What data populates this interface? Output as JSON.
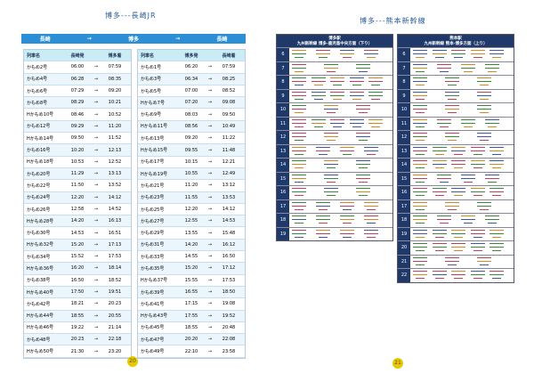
{
  "left_page": {
    "title": "博多---長崎JR",
    "route": [
      "長崎",
      "→",
      "博多",
      "→",
      "長崎"
    ],
    "tables": [
      {
        "header": [
          "列車名",
          "長崎発",
          "博多着"
        ],
        "arrow": "→",
        "rows": [
          [
            "かもめ2号",
            "06:00",
            "07:59"
          ],
          [
            "かもめ4号",
            "06:28",
            "08:35"
          ],
          [
            "かもめ6号",
            "07:29",
            "09:20"
          ],
          [
            "かもめ8号",
            "08:29",
            "10:21"
          ],
          [
            "Hかもめ10号",
            "08:46",
            "10:52"
          ],
          [
            "かもめ12号",
            "09:29",
            "11:20"
          ],
          [
            "Hかもめ14号",
            "09:50",
            "11:52"
          ],
          [
            "かもめ16号",
            "10:20",
            "12:13"
          ],
          [
            "Hかもめ18号",
            "10:53",
            "12:52"
          ],
          [
            "かもめ20号",
            "11:29",
            "13:13"
          ],
          [
            "かもめ22号",
            "11:50",
            "13:52"
          ],
          [
            "かもめ24号",
            "12:20",
            "14:12"
          ],
          [
            "かもめ26号",
            "12:58",
            "14:52"
          ],
          [
            "Hかもめ28号",
            "14:20",
            "16:13"
          ],
          [
            "かもめ30号",
            "14:53",
            "16:51"
          ],
          [
            "Hかもめ32号",
            "15:20",
            "17:13"
          ],
          [
            "かもめ34号",
            "15:52",
            "17:53"
          ],
          [
            "Hかもめ36号",
            "16:20",
            "18:14"
          ],
          [
            "かもめ38号",
            "16:50",
            "18:52"
          ],
          [
            "Hかもめ40号",
            "17:50",
            "19:51"
          ],
          [
            "かもめ42号",
            "18:21",
            "20:23"
          ],
          [
            "Hかもめ44号",
            "18:55",
            "20:55"
          ],
          [
            "Hかもめ46号",
            "19:22",
            "21:14"
          ],
          [
            "かもめ48号",
            "20:23",
            "22:18"
          ],
          [
            "Hかもめ50号",
            "21:30",
            "23:20"
          ]
        ]
      },
      {
        "header": [
          "列車名",
          "博多発",
          "長崎着"
        ],
        "arrow": "→",
        "rows": [
          [
            "かもめ1号",
            "06:20",
            "07:59"
          ],
          [
            "かもめ3号",
            "06:34",
            "08:25"
          ],
          [
            "かもめ5号",
            "07:00",
            "08:52"
          ],
          [
            "Hかもめ7号",
            "07:20",
            "09:08"
          ],
          [
            "かもめ9号",
            "08:03",
            "09:50"
          ],
          [
            "Hかもめ11号",
            "08:56",
            "10:49"
          ],
          [
            "かもめ13号",
            "09:20",
            "11:22"
          ],
          [
            "Hかもめ15号",
            "09:55",
            "11:48"
          ],
          [
            "かもめ17号",
            "10:15",
            "12:21"
          ],
          [
            "Hかもめ19号",
            "10:55",
            "12:49"
          ],
          [
            "かもめ21号",
            "11:20",
            "13:12"
          ],
          [
            "かもめ23号",
            "11:55",
            "13:53"
          ],
          [
            "かもめ25号",
            "12:20",
            "14:12"
          ],
          [
            "かもめ27号",
            "12:55",
            "14:53"
          ],
          [
            "かもめ29号",
            "13:55",
            "15:48"
          ],
          [
            "かもめ31号",
            "14:20",
            "16:12"
          ],
          [
            "かもめ33号",
            "14:55",
            "16:50"
          ],
          [
            "かもめ35号",
            "15:20",
            "17:12"
          ],
          [
            "Hかもめ37号",
            "15:55",
            "17:53"
          ],
          [
            "かもめ39号",
            "16:55",
            "18:50"
          ],
          [
            "かもめ41号",
            "17:15",
            "19:08"
          ],
          [
            "Hかもめ43号",
            "17:55",
            "19:52"
          ],
          [
            "かもめ45号",
            "18:55",
            "20:48"
          ],
          [
            "かもめ47号",
            "20:20",
            "22:08"
          ],
          [
            "かもめ49号",
            "22:10",
            "23:58"
          ]
        ]
      }
    ],
    "page_number": "20"
  },
  "right_page": {
    "title": "博多---熊本新幹線",
    "grids": [
      {
        "station": "博多駅",
        "line": "九州新幹線 博多-鹿児島中央方面（下り）",
        "hours": [
          "6",
          "7",
          "8",
          "9",
          "10",
          "11",
          "12",
          "13",
          "14",
          "15",
          "16",
          "17",
          "18",
          "19"
        ]
      },
      {
        "station": "熊本駅",
        "line": "九州新幹線 熊本-博多方面（上り）",
        "hours": [
          "6",
          "7",
          "8",
          "9",
          "10",
          "11",
          "12",
          "13",
          "14",
          "15",
          "16",
          "17",
          "18",
          "19",
          "20",
          "21",
          "22"
        ]
      }
    ],
    "page_number": "21"
  }
}
